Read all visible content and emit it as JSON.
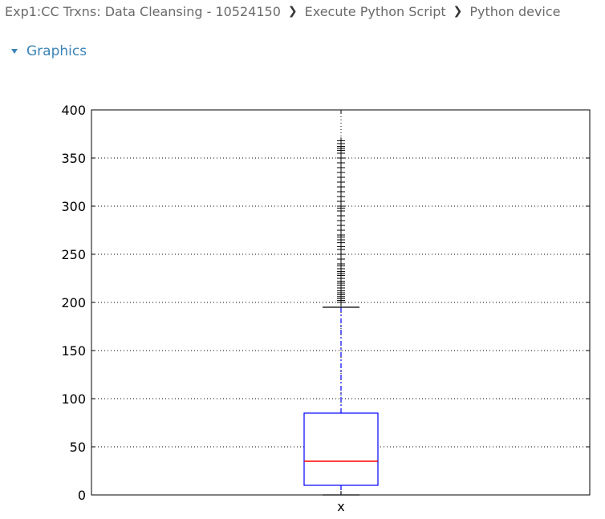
{
  "breadcrumb": {
    "items": [
      "Exp1:CC Trxns: Data Cleansing - 10524150",
      "Execute Python Script",
      "Python device"
    ],
    "separator": "❯"
  },
  "section": {
    "label": "Graphics",
    "icon": "triangle-down-icon"
  },
  "chart_data": {
    "type": "box",
    "categories": [
      "x"
    ],
    "ylim": [
      0,
      400
    ],
    "yticks": [
      0,
      50,
      100,
      150,
      200,
      250,
      300,
      350,
      400
    ],
    "grid": true,
    "box": {
      "whisker_low": 0,
      "q1": 10,
      "median": 35,
      "q3": 85,
      "whisker_high": 195
    },
    "outliers": [
      200,
      202,
      204,
      206,
      208,
      210,
      212,
      215,
      218,
      220,
      222,
      225,
      228,
      230,
      232,
      235,
      238,
      240,
      245,
      250,
      255,
      258,
      262,
      265,
      268,
      270,
      275,
      280,
      285,
      290,
      295,
      298,
      300,
      305,
      310,
      315,
      320,
      325,
      330,
      335,
      340,
      345,
      350,
      355,
      358,
      360,
      362,
      365,
      368
    ],
    "colors": {
      "box": "#0000ff",
      "median": "#ff0000",
      "whisker": "#0000ff",
      "cap": "#000000",
      "flier": "#000000",
      "grid": "#000000"
    }
  }
}
